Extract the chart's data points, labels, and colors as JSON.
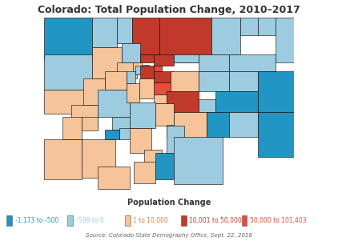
{
  "title": "Colorado: Total Population Change, 2010–2017",
  "legend_title": "Population Change",
  "source_text": "Source: Colorado State Demography Office, Sept. 22, 2018",
  "legend_items": [
    {
      "label": "-1,173 to -500",
      "box_color": "#2196c4",
      "text_color": "#2196c4"
    },
    {
      "label": "-599 to 0",
      "box_color": "#9dcce0",
      "text_color": "#9dcce0"
    },
    {
      "label": "1 to 10,000",
      "box_color": "#f5c49a",
      "text_color": "#d4813a"
    },
    {
      "label": "10,001 to 50,000",
      "box_color": "#c0392b",
      "text_color": "#c0392b"
    },
    {
      "label": "50,000 to 101,403",
      "box_color": "#e74c3c",
      "text_color": "#e74c3c"
    }
  ],
  "county_colors": {
    "Moffat": "#2196c4",
    "Routt": "#9dcce0",
    "Jackson": "#9dcce0",
    "Larimer": "#c0392b",
    "Grand": "#9dcce0",
    "Rio Blanco": "#9dcce0",
    "Garfield": "#f5c49a",
    "Eagle": "#f5c49a",
    "Summit": "#f5c49a",
    "Boulder": "#c0392b",
    "Weld": "#c0392b",
    "Morgan": "#9dcce0",
    "Logan": "#9dcce0",
    "Sedgwick": "#9dcce0",
    "Phillips": "#9dcce0",
    "Yuma": "#9dcce0",
    "Washington": "#9dcce0",
    "Mesa": "#f5c49a",
    "Pitkin": "#f5c49a",
    "Lake": "#9dcce0",
    "Clear Creek": "#9dcce0",
    "Gilpin": "#9dcce0",
    "Jefferson": "#c0392b",
    "Adams": "#c0392b",
    "Arapahoe": "#c0392b",
    "Denver": "#e74c3c",
    "Douglas": "#e74c3c",
    "Elbert": "#f5c49a",
    "Lincoln": "#9dcce0",
    "Kit Carson": "#9dcce0",
    "Cheyenne": "#9dcce0",
    "Delta": "#f5c49a",
    "Gunnison": "#9dcce0",
    "Chaffee": "#f5c49a",
    "Park": "#f5c49a",
    "Teller": "#f5c49a",
    "El Paso": "#c0392b",
    "Crowley": "#9dcce0",
    "Kiowa": "#2196c4",
    "Prowers": "#2196c4",
    "Bent": "#9dcce0",
    "Otero": "#2196c4",
    "Pueblo": "#f5c49a",
    "Fremont": "#f5c49a",
    "Custer": "#9dcce0",
    "Huerfano": "#9dcce0",
    "Las Animas": "#9dcce0",
    "Baca": "#2196c4",
    "Montrose": "#f5c49a",
    "Ouray": "#f5c49a",
    "San Miguel": "#f5c49a",
    "Dolores": "#9dcce0",
    "Montezuma": "#f5c49a",
    "La Plata": "#f5c49a",
    "Archuleta": "#f5c49a",
    "Mineral": "#9dcce0",
    "Hinsdale": "#9dcce0",
    "San Juan": "#2196c4",
    "Rio Grande": "#f5c49a",
    "Saguache": "#9dcce0",
    "Alamosa": "#f5c49a",
    "Conejos": "#f5c49a",
    "Costilla": "#2196c4"
  },
  "background_color": "#ffffff",
  "map_edgecolor": "#000000",
  "map_linewidth": 0.4,
  "title_fontsize": 9,
  "legend_title_fontsize": 7,
  "legend_label_fontsize": 5.5,
  "source_fontsize": 5
}
